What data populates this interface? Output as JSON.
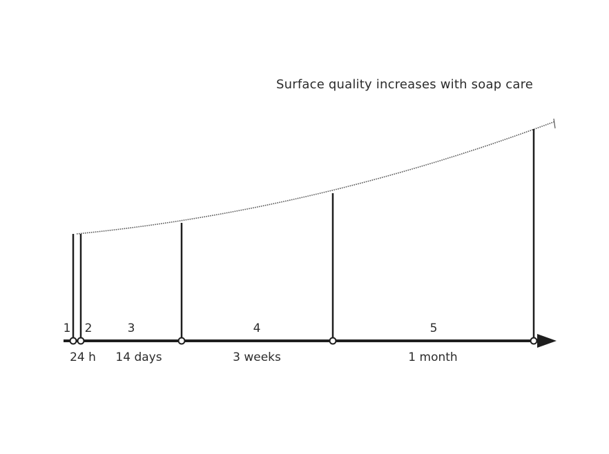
{
  "caption": "Surface quality increases with soap care",
  "colors": {
    "line": "#1e1e1e",
    "curve": "#555555",
    "text": "#2b2b2b"
  },
  "phases": [
    {
      "number": "1"
    },
    {
      "number": "2"
    },
    {
      "number": "3"
    },
    {
      "number": "4"
    },
    {
      "number": "5"
    }
  ],
  "durations": [
    "24 h",
    "14 days",
    "3 weeks",
    "1 month"
  ]
}
